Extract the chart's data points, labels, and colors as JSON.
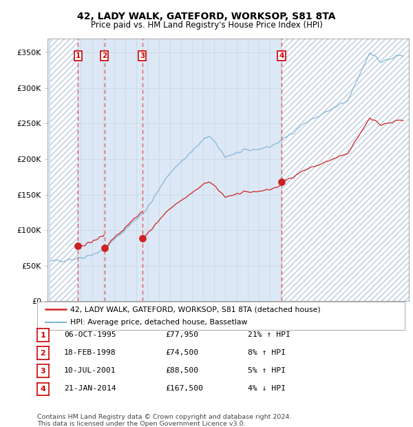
{
  "title": "42, LADY WALK, GATEFORD, WORKSOP, S81 8TA",
  "subtitle": "Price paid vs. HM Land Registry's House Price Index (HPI)",
  "ylabel_ticks": [
    "£0",
    "£50K",
    "£100K",
    "£150K",
    "£200K",
    "£250K",
    "£300K",
    "£350K"
  ],
  "ytick_vals": [
    0,
    50000,
    100000,
    150000,
    200000,
    250000,
    300000,
    350000
  ],
  "ylim": [
    0,
    370000
  ],
  "xlim_start": 1993.25,
  "xlim_end": 2025.5,
  "transactions": [
    {
      "num": 1,
      "date": "06-OCT-1995",
      "year": 1995.75,
      "price": 77950,
      "pct": "21%",
      "dir": "↑"
    },
    {
      "num": 2,
      "date": "18-FEB-1998",
      "year": 1998.12,
      "price": 74500,
      "pct": "8%",
      "dir": "↑"
    },
    {
      "num": 3,
      "date": "10-JUL-2001",
      "year": 2001.52,
      "price": 88500,
      "pct": "5%",
      "dir": "↑"
    },
    {
      "num": 4,
      "date": "21-JAN-2014",
      "year": 2014.05,
      "price": 167500,
      "pct": "4%",
      "dir": "↓"
    }
  ],
  "legend_label_red": "42, LADY WALK, GATEFORD, WORKSOP, S81 8TA (detached house)",
  "legend_label_blue": "HPI: Average price, detached house, Bassetlaw",
  "footer1": "Contains HM Land Registry data © Crown copyright and database right 2024.",
  "footer2": "This data is licensed under the Open Government Licence v3.0.",
  "hpi_color": "#7bafd4",
  "price_color": "#cc2222",
  "bg_color": "#dce8f5",
  "hatch_edge_color": "#b8c8dc"
}
